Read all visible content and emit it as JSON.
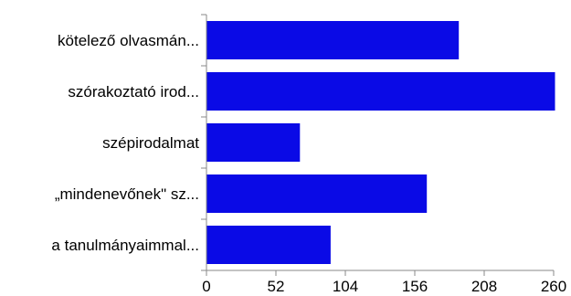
{
  "chart_data": {
    "type": "bar",
    "orientation": "horizontal",
    "title": "",
    "xlabel": "",
    "ylabel": "",
    "categories": [
      "kötelező olvasmán...",
      "szórakoztató irod...",
      "szépirodalmat",
      "„mindenevőnek\" sz...",
      "a tanulmányaimmal..."
    ],
    "values": [
      189,
      261,
      70,
      165,
      93
    ],
    "xlim": [
      0,
      260
    ],
    "xticks": [
      "0",
      "52",
      "104",
      "156",
      "208",
      "260"
    ],
    "grid": false,
    "legend": "none",
    "bar_color": "#0a0ae6",
    "axis_color": "#888888"
  }
}
